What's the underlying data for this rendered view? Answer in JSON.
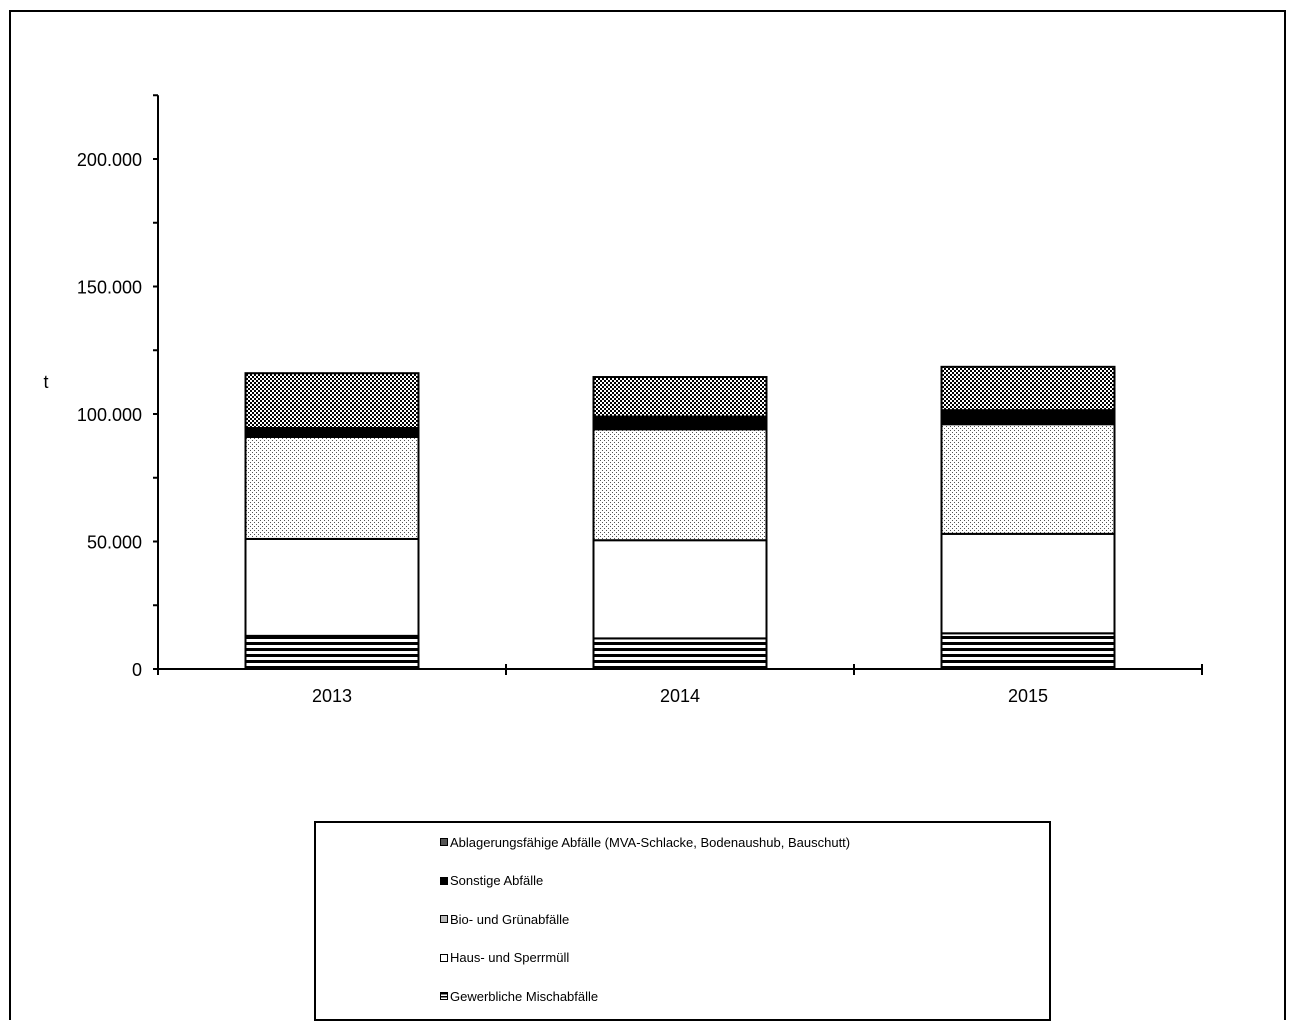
{
  "chart_data": {
    "type": "bar",
    "stacked": true,
    "ylabel": "t",
    "ylim": [
      0,
      225000
    ],
    "y_ticks": [
      "0",
      "50.000",
      "100.000",
      "150.000",
      "200.000"
    ],
    "y_tick_values": [
      0,
      50000,
      100000,
      150000,
      200000
    ],
    "categories": [
      "2013",
      "2014",
      "2015"
    ],
    "series": [
      {
        "name": "Gewerbliche Mischabfälle",
        "pattern": "horizontal-stripes",
        "values": [
          13000,
          12000,
          14000
        ]
      },
      {
        "name": "Haus- und Sperrmüll",
        "pattern": "white",
        "values": [
          38000,
          38500,
          39000
        ]
      },
      {
        "name": "Bio- und Grünabfälle",
        "pattern": "dots",
        "values": [
          40000,
          43500,
          43000
        ]
      },
      {
        "name": "Sonstige Abfälle",
        "pattern": "black",
        "values": [
          3500,
          5000,
          5500
        ]
      },
      {
        "name": "Ablagerungsfähige Abfälle (MVA-Schlacke, Bodenaushub, Bauschutt)",
        "pattern": "checker",
        "values": [
          21500,
          15500,
          17000
        ]
      }
    ],
    "legend_position": "bottom",
    "grid": false
  }
}
